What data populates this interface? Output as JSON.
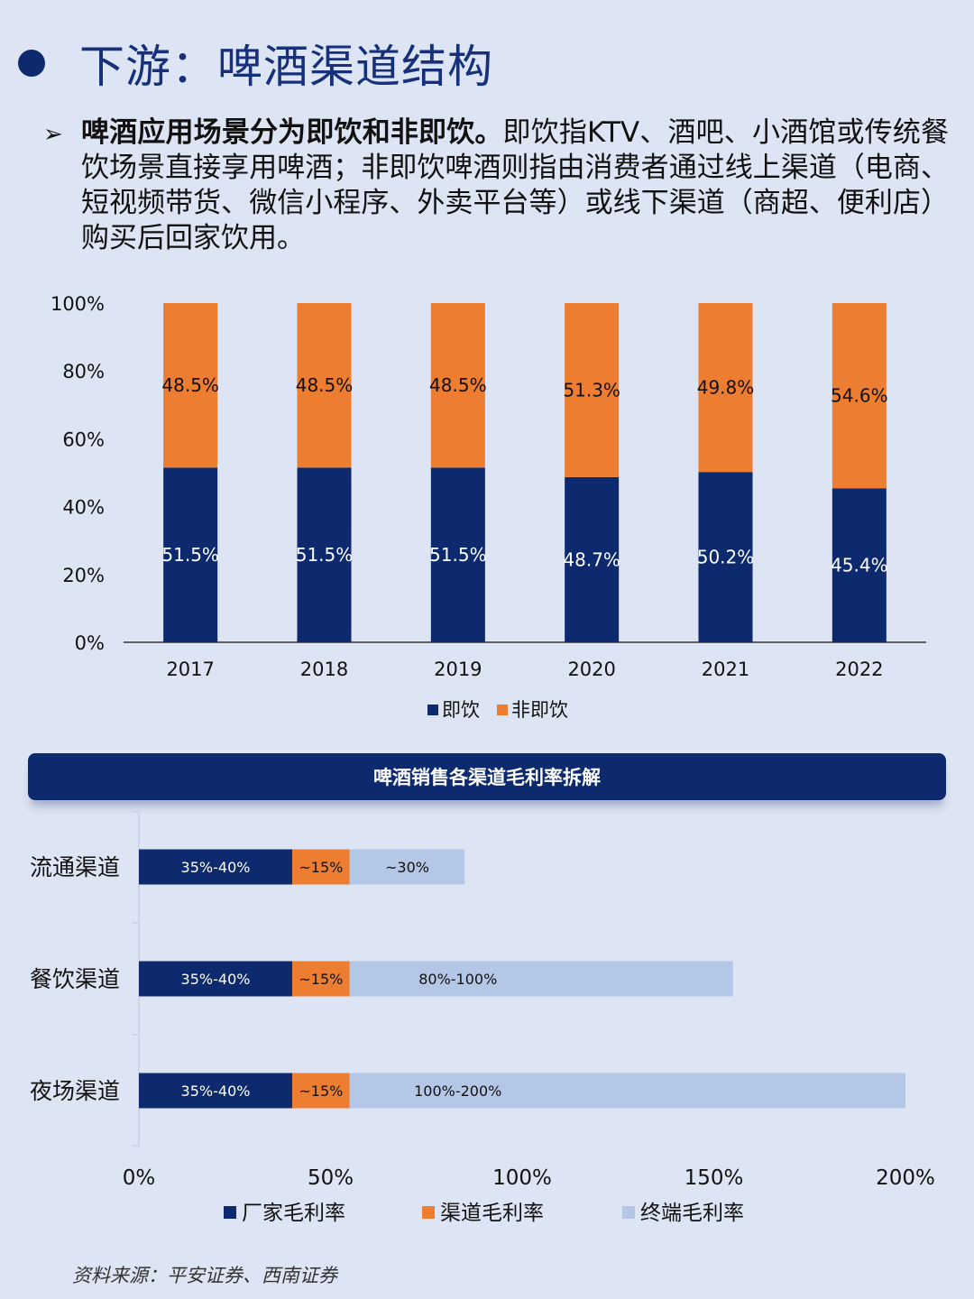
{
  "header": {
    "title": "下游：啤酒渠道结构",
    "intro_bold": "啤酒应用场景分为即饮和非即饮。",
    "intro_rest": "即饮指KTV、酒吧、小酒馆或传统餐饮场景直接享用啤酒；非即饮啤酒则指由消费者通过线上渠道（电商、短视频带货、微信小程序、外卖平台等）或线下渠道（商超、便利店）购买后回家饮用。"
  },
  "colors": {
    "navy": "#0d2a6e",
    "orange": "#ed7d31",
    "light_blue": "#b4c7e7"
  },
  "chart_data": [
    {
      "type": "bar",
      "stacked": true,
      "categories": [
        "2017",
        "2018",
        "2019",
        "2020",
        "2021",
        "2022"
      ],
      "series": [
        {
          "name": "即饮",
          "values": [
            51.5,
            51.5,
            51.5,
            48.7,
            50.2,
            45.4
          ],
          "labels": [
            "51.5%",
            "51.5%",
            "51.5%",
            "48.7%",
            "50.2%",
            "45.4%"
          ],
          "color": "#0d2a6e"
        },
        {
          "name": "非即饮",
          "values": [
            48.5,
            48.5,
            48.5,
            51.3,
            49.8,
            54.6
          ],
          "labels": [
            "48.5%",
            "48.5%",
            "48.5%",
            "51.3%",
            "49.8%",
            "54.6%"
          ],
          "color": "#ed7d31"
        }
      ],
      "ylim": [
        0,
        100
      ],
      "yticks": [
        "0%",
        "20%",
        "40%",
        "60%",
        "80%",
        "100%"
      ],
      "legend": "bottom"
    },
    {
      "type": "bar",
      "orientation": "horizontal",
      "stacked": true,
      "title": "啤酒销售各渠道毛利率拆解",
      "categories": [
        "流通渠道",
        "餐饮渠道",
        "夜场渠道"
      ],
      "series": [
        {
          "name": "厂家毛利率",
          "values": [
            40,
            40,
            40
          ],
          "labels": [
            "35%-40%",
            "35%-40%",
            "35%-40%"
          ],
          "color": "#0d2a6e"
        },
        {
          "name": "渠道毛利率",
          "values": [
            15,
            15,
            15
          ],
          "labels": [
            "~15%",
            "~15%",
            "~15%"
          ],
          "color": "#ed7d31"
        },
        {
          "name": "终端毛利率",
          "values": [
            30,
            100,
            145
          ],
          "labels": [
            "~30%",
            "80%-100%",
            "100%-200%"
          ],
          "color": "#b4c7e7"
        }
      ],
      "xlim": [
        0,
        200
      ],
      "xticks": [
        "0%",
        "50%",
        "100%",
        "150%",
        "200%"
      ],
      "legend": "bottom"
    }
  ],
  "footer": {
    "source": "资料来源：平安证券、西南证券"
  }
}
